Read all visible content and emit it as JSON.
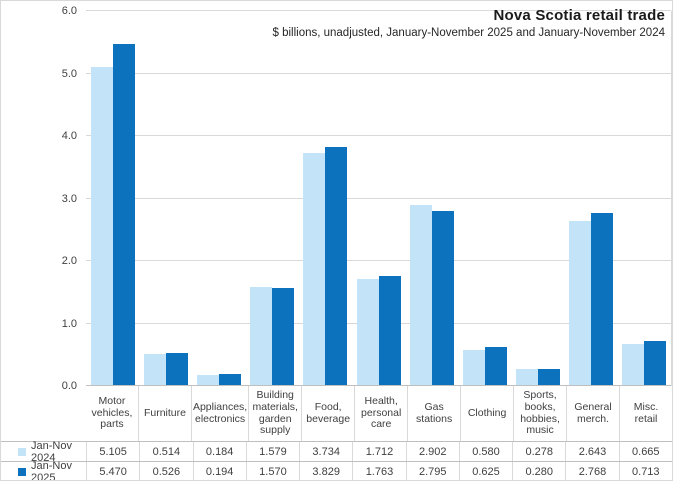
{
  "chart_data": {
    "type": "bar",
    "title": "Nova Scotia retail trade",
    "subtitle": "$ billions, unadjusted, January-November  2025 and January-November  2024",
    "categories": [
      "Motor\nvehicles,\nparts",
      "Furniture",
      "Appliances,\nelectronics",
      "Building\nmaterials,\ngarden\nsupply",
      "Food,\nbeverage",
      "Health,\npersonal\ncare",
      "Gas\nstations",
      "Clothing",
      "Sports,\nbooks,\nhobbies,\nmusic",
      "General\nmerch.",
      "Misc. retail"
    ],
    "series": [
      {
        "name": "Jan-Nov 2024",
        "color": "#c2e3f8",
        "values": [
          5.105,
          0.514,
          0.184,
          1.579,
          3.734,
          1.712,
          2.902,
          0.58,
          0.278,
          2.643,
          0.665
        ],
        "display": [
          "5.105",
          "0.514",
          "0.184",
          "1.579",
          "3.734",
          "1.712",
          "2.902",
          "0.580",
          "0.278",
          "2.643",
          "0.665"
        ]
      },
      {
        "name": "Jan-Nov 2025",
        "color": "#0c72be",
        "values": [
          5.47,
          0.526,
          0.194,
          1.57,
          3.829,
          1.763,
          2.795,
          0.625,
          0.28,
          2.768,
          0.713
        ],
        "display": [
          "5.470",
          "0.526",
          "0.194",
          "1.570",
          "3.829",
          "1.763",
          "2.795",
          "0.625",
          "0.280",
          "2.768",
          "0.713"
        ]
      }
    ],
    "ylim": [
      0,
      6
    ],
    "ytick_labels": [
      "0.0",
      "1.0",
      "2.0",
      "3.0",
      "4.0",
      "5.0",
      "6.0"
    ],
    "xlabel": "",
    "ylabel": "",
    "grid": true,
    "legend_position": "bottom-left-data-table"
  },
  "colors": {
    "series_2024": "#c2e3f8",
    "series_2025": "#0c72be",
    "gridline": "#d9d9d9",
    "axis_line": "#bfbfbf",
    "table_line": "#bfbfbf",
    "text": "#404040",
    "title_text": "#1a1a1a",
    "frame_border": "#d9d9d9"
  }
}
